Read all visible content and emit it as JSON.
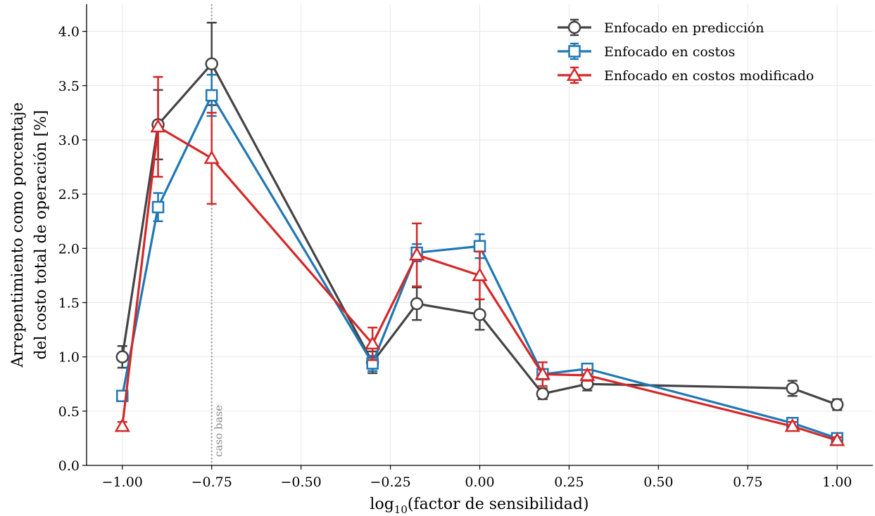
{
  "chart_data": {
    "type": "line",
    "xlabel_prefix": "log",
    "xlabel_sub": "10",
    "xlabel_rest": "(factor de sensibilidad)",
    "ylabel_line1": "Arrepentimiento como porcentaje",
    "ylabel_line2": "del costo total de operación [%]",
    "xlim": [
      -1.1,
      1.1
    ],
    "ylim": [
      0,
      4.25
    ],
    "xticks": [
      -1.0,
      -0.75,
      -0.5,
      -0.25,
      0.0,
      0.25,
      0.5,
      0.75,
      1.0
    ],
    "xtick_labels": [
      "−1.00",
      "−0.75",
      "−0.50",
      "−0.25",
      "0.00",
      "0.25",
      "0.50",
      "0.75",
      "1.00"
    ],
    "yticks": [
      0.0,
      0.5,
      1.0,
      1.5,
      2.0,
      2.5,
      3.0,
      3.5,
      4.0
    ],
    "ytick_labels": [
      "0.0",
      "0.5",
      "1.0",
      "1.5",
      "2.0",
      "2.5",
      "3.0",
      "3.5",
      "4.0"
    ],
    "grid": true,
    "legend_position": "top-right",
    "reference_line": {
      "x": -0.75,
      "label": "caso base",
      "color": "#999999"
    },
    "series": [
      {
        "name": "Enfocado en predicción",
        "color": "#444444",
        "marker": "circle",
        "x": [
          -1.0,
          -0.9,
          -0.75,
          -0.3,
          -0.176,
          0.0,
          0.176,
          0.301,
          0.875,
          1.0
        ],
        "y": [
          1.0,
          3.14,
          3.7,
          0.95,
          1.49,
          1.39,
          0.66,
          0.75,
          0.71,
          0.56
        ],
        "err": [
          0.1,
          0.32,
          0.38,
          0.1,
          0.15,
          0.14,
          0.05,
          0.06,
          0.07,
          0.05
        ]
      },
      {
        "name": "Enfocado en costos",
        "color": "#1f77b4",
        "marker": "square",
        "x": [
          -1.0,
          -0.9,
          -0.75,
          -0.3,
          -0.176,
          0.0,
          0.176,
          0.301,
          0.875,
          1.0
        ],
        "y": [
          0.64,
          2.38,
          3.41,
          0.94,
          1.96,
          2.02,
          0.84,
          0.89,
          0.39,
          0.25
        ],
        "err": [
          0.02,
          0.13,
          0.19,
          0.07,
          0.08,
          0.11,
          0.03,
          0.03,
          0.03,
          0.02
        ]
      },
      {
        "name": "Enfocado en costos modificado",
        "color": "#d62728",
        "marker": "triangle",
        "x": [
          -1.0,
          -0.9,
          -0.75,
          -0.3,
          -0.176,
          0.0,
          0.176,
          0.301,
          0.875,
          1.0
        ],
        "y": [
          0.36,
          3.12,
          2.83,
          1.12,
          1.94,
          1.75,
          0.84,
          0.83,
          0.36,
          0.23
        ],
        "err": [
          0.04,
          0.46,
          0.42,
          0.15,
          0.29,
          0.22,
          0.11,
          0.05,
          0.04,
          0.03
        ]
      }
    ]
  }
}
